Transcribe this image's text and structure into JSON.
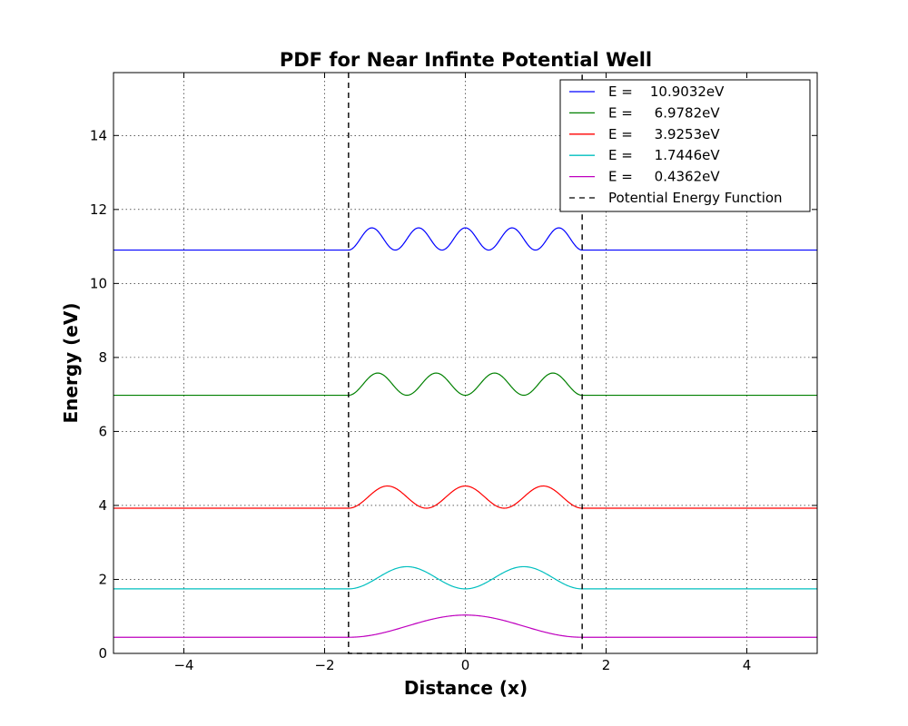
{
  "chart_data": {
    "type": "line",
    "title": "PDF for Near Infinte Potential Well",
    "xlabel": "Distance (x)",
    "ylabel": "Energy (eV)",
    "xlim": [
      -5,
      5
    ],
    "ylim": [
      0,
      15.7
    ],
    "xticks": [
      -4,
      -2,
      0,
      2,
      4
    ],
    "xtick_labels": [
      "−4",
      "−2",
      "0",
      "2",
      "4"
    ],
    "yticks": [
      0,
      2,
      4,
      6,
      8,
      10,
      12,
      14
    ],
    "ytick_labels": [
      "0",
      "2",
      "4",
      "6",
      "8",
      "10",
      "12",
      "14"
    ],
    "grid": true,
    "legend_position": "top-right",
    "well": {
      "x_left": -1.66,
      "x_right": 1.66
    },
    "series": [
      {
        "name": "E =    10.9032eV",
        "color": "#0000ff",
        "energy": 10.9032,
        "n": 5,
        "amplitude": 0.6
      },
      {
        "name": "E =     6.9782eV",
        "color": "#008000",
        "energy": 6.9782,
        "n": 4,
        "amplitude": 0.6
      },
      {
        "name": "E =     3.9253eV",
        "color": "#ff0000",
        "energy": 3.9253,
        "n": 3,
        "amplitude": 0.6
      },
      {
        "name": "E =     1.7446eV",
        "color": "#00bfbf",
        "energy": 1.7446,
        "n": 2,
        "amplitude": 0.6
      },
      {
        "name": "E =     0.4362eV",
        "color": "#bf00bf",
        "energy": 0.4362,
        "n": 1,
        "amplitude": 0.6
      }
    ],
    "potential_series": {
      "name": "Potential Energy Function",
      "color": "#000000",
      "style": "dashed"
    }
  }
}
